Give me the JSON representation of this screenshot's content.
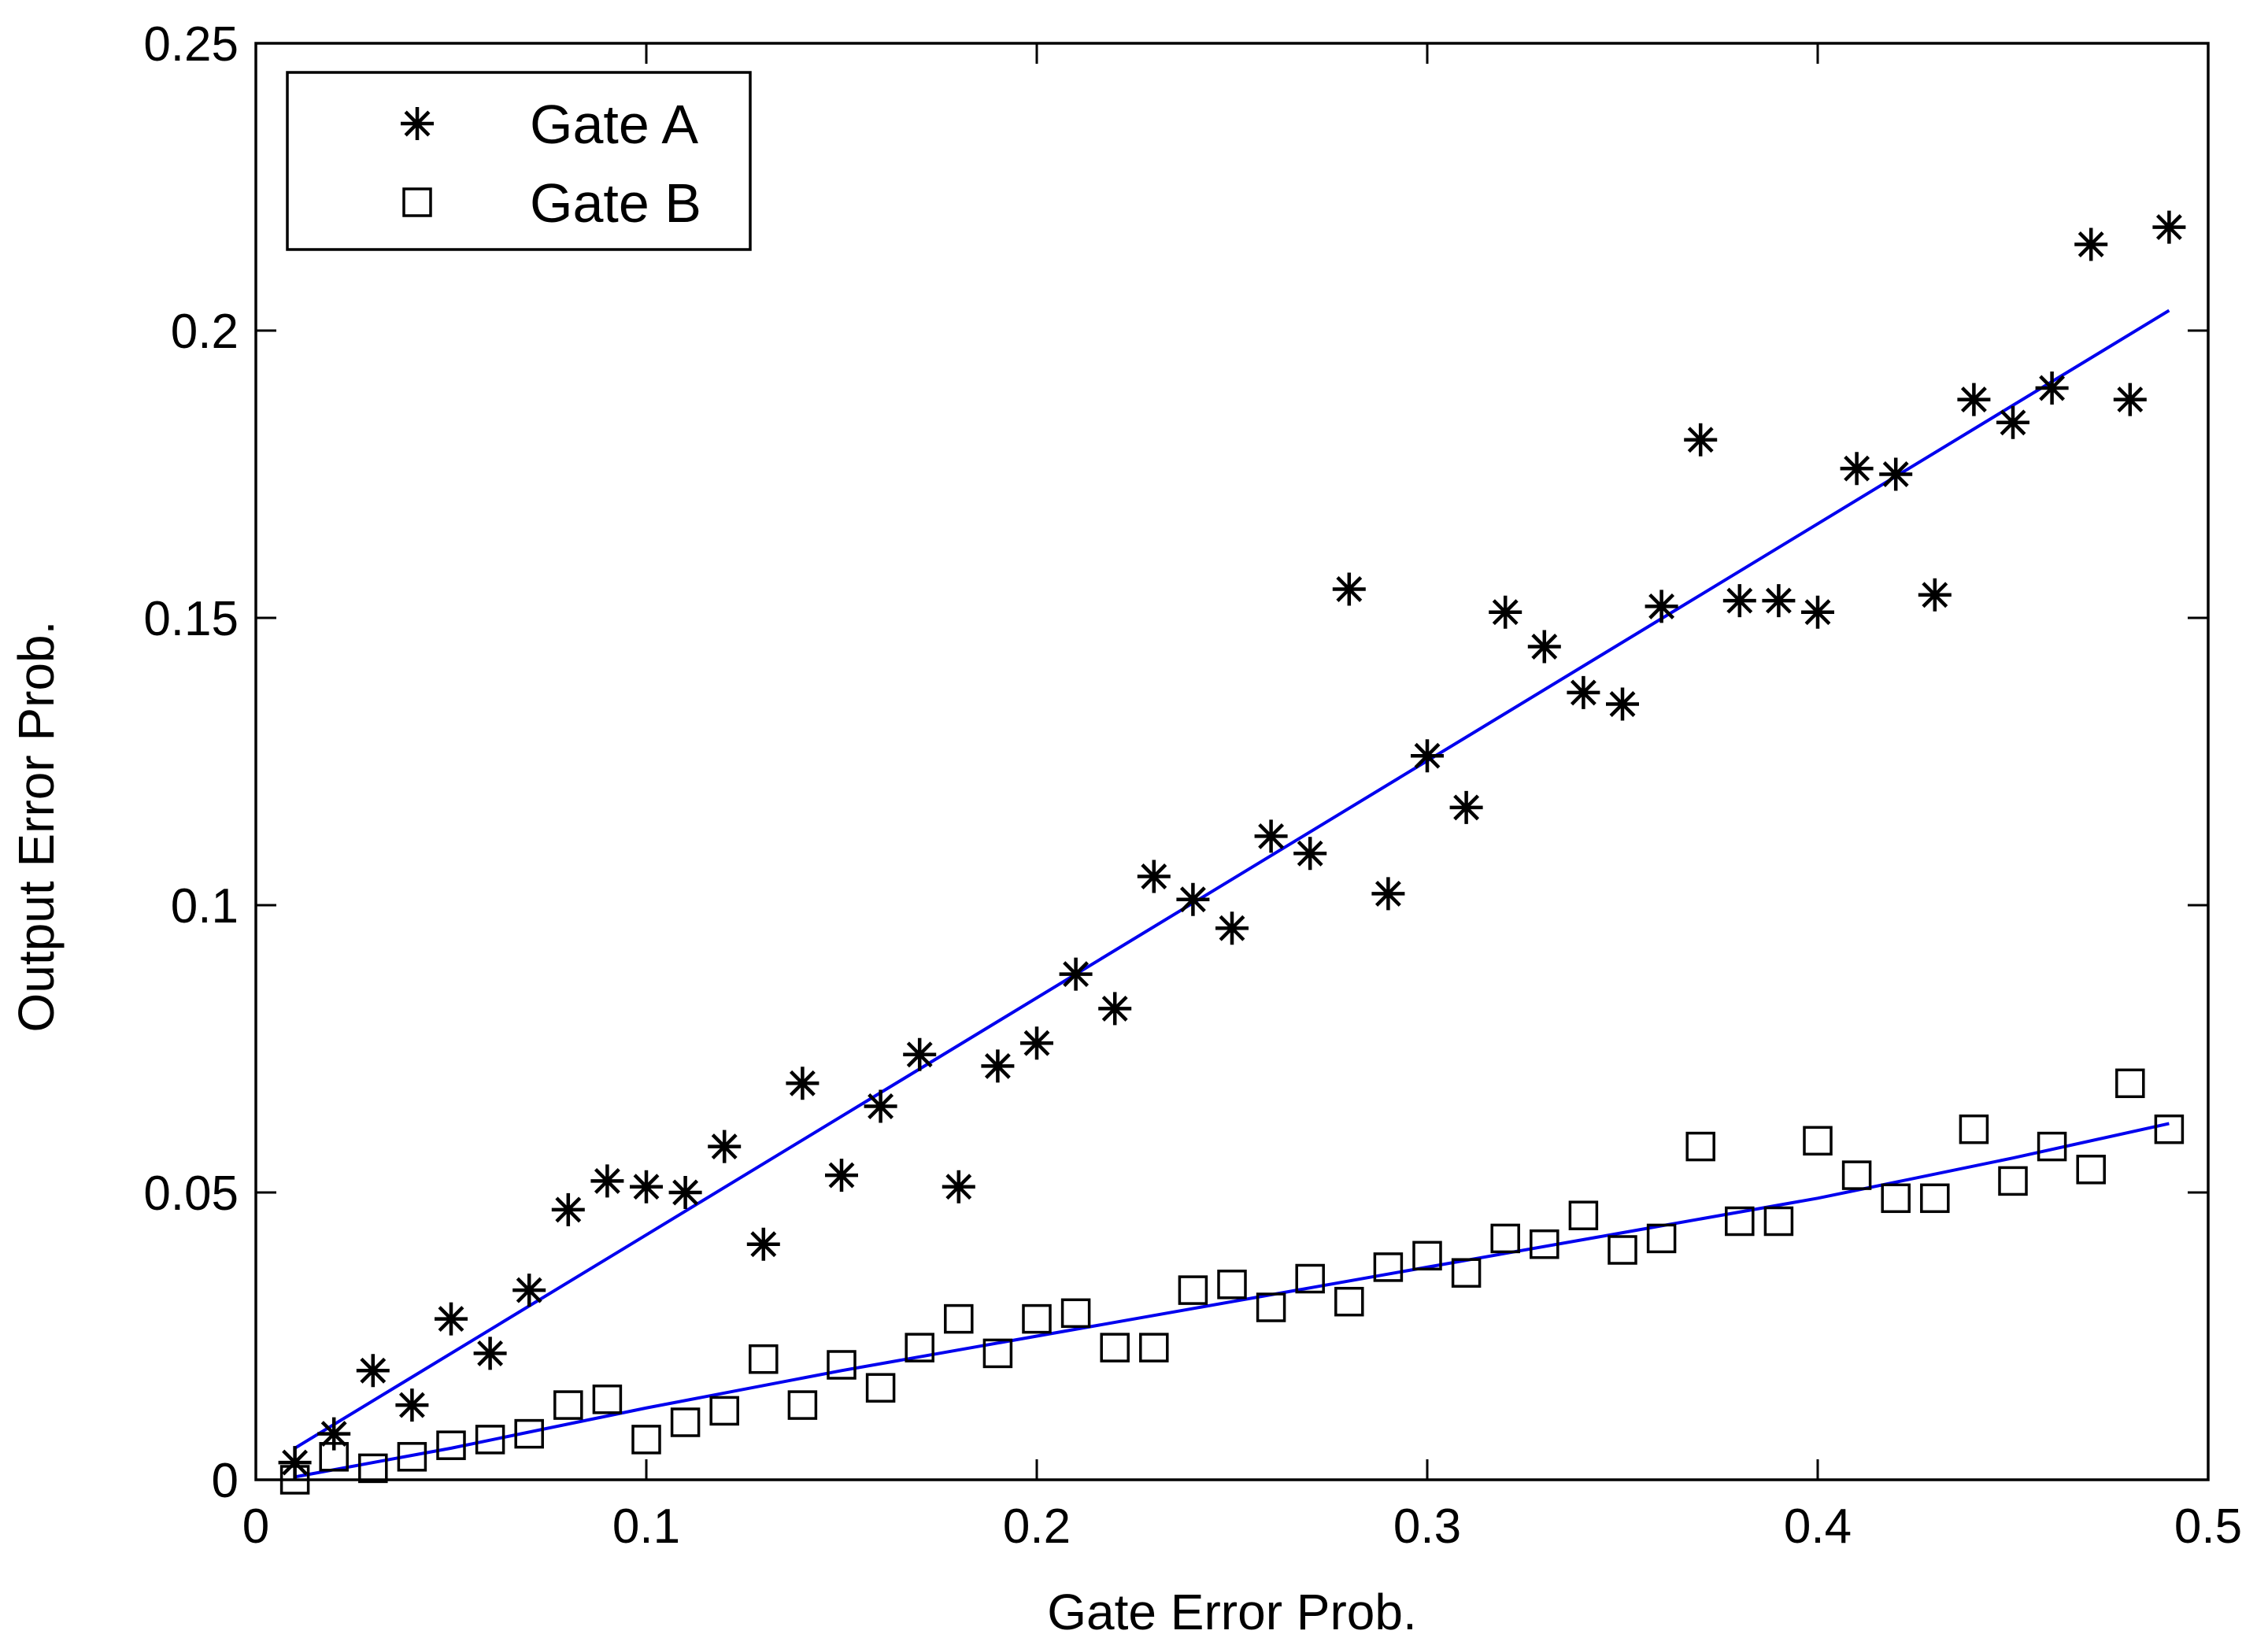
{
  "chart_data": {
    "type": "scatter",
    "title": "",
    "xlabel": "Gate Error Prob.",
    "ylabel": "Output Error Prob.",
    "xlim": [
      0,
      0.5
    ],
    "ylim": [
      0,
      0.25
    ],
    "grid": false,
    "legend_position": "top-left",
    "xticks": [
      0,
      0.1,
      0.2,
      0.3,
      0.4,
      0.5
    ],
    "xtick_labels": [
      "0",
      "0.1",
      "0.2",
      "0.3",
      "0.4",
      "0.5"
    ],
    "yticks": [
      0,
      0.05,
      0.1,
      0.15,
      0.2,
      0.25
    ],
    "ytick_labels": [
      "0",
      "0.05",
      "0.1",
      "0.15",
      "0.2",
      "0.25"
    ],
    "fit_color": "#0000ee",
    "series": [
      {
        "name": "Gate A",
        "marker": "asterisk",
        "x": [
          0.01,
          0.02,
          0.03,
          0.04,
          0.05,
          0.06,
          0.07,
          0.08,
          0.09,
          0.1,
          0.11,
          0.12,
          0.13,
          0.14,
          0.15,
          0.16,
          0.17,
          0.18,
          0.19,
          0.2,
          0.21,
          0.22,
          0.23,
          0.24,
          0.25,
          0.26,
          0.27,
          0.28,
          0.29,
          0.3,
          0.31,
          0.32,
          0.33,
          0.34,
          0.35,
          0.36,
          0.37,
          0.38,
          0.39,
          0.4,
          0.41,
          0.42,
          0.43,
          0.44,
          0.45,
          0.46,
          0.47,
          0.48,
          0.49
        ],
        "y": [
          0.003,
          0.008,
          0.019,
          0.013,
          0.028,
          0.022,
          0.033,
          0.047,
          0.052,
          0.051,
          0.05,
          0.058,
          0.041,
          0.069,
          0.053,
          0.065,
          0.074,
          0.051,
          0.072,
          0.076,
          0.088,
          0.082,
          0.105,
          0.101,
          0.096,
          0.112,
          0.109,
          0.155,
          0.102,
          0.126,
          0.117,
          0.151,
          0.145,
          0.137,
          0.135,
          0.152,
          0.181,
          0.153,
          0.153,
          0.151,
          0.176,
          0.175,
          0.154,
          0.188,
          0.184,
          0.19,
          0.215,
          0.188,
          0.218
        ],
        "fit": {
          "x": [
            0.01,
            0.49
          ],
          "y": [
            0.0055,
            0.2035
          ]
        }
      },
      {
        "name": "Gate B",
        "marker": "square",
        "x": [
          0.01,
          0.02,
          0.03,
          0.04,
          0.05,
          0.06,
          0.07,
          0.08,
          0.09,
          0.1,
          0.11,
          0.12,
          0.13,
          0.14,
          0.15,
          0.16,
          0.17,
          0.18,
          0.19,
          0.2,
          0.21,
          0.22,
          0.23,
          0.24,
          0.25,
          0.26,
          0.27,
          0.28,
          0.29,
          0.3,
          0.31,
          0.32,
          0.33,
          0.34,
          0.35,
          0.36,
          0.37,
          0.38,
          0.39,
          0.4,
          0.41,
          0.42,
          0.43,
          0.44,
          0.45,
          0.46,
          0.47,
          0.48,
          0.49
        ],
        "y": [
          0.0,
          0.004,
          0.002,
          0.004,
          0.006,
          0.007,
          0.008,
          0.013,
          0.014,
          0.007,
          0.01,
          0.012,
          0.021,
          0.013,
          0.02,
          0.016,
          0.023,
          0.028,
          0.022,
          0.028,
          0.029,
          0.023,
          0.023,
          0.033,
          0.034,
          0.03,
          0.035,
          0.031,
          0.037,
          0.039,
          0.036,
          0.042,
          0.041,
          0.046,
          0.04,
          0.042,
          0.058,
          0.045,
          0.045,
          0.059,
          0.053,
          0.049,
          0.049,
          0.061,
          0.052,
          0.058,
          0.054,
          0.069,
          0.061
        ],
        "fit": {
          "x": [
            0.01,
            0.05,
            0.1,
            0.15,
            0.2,
            0.25,
            0.3,
            0.35,
            0.4,
            0.45,
            0.49
          ],
          "y": [
            0.0005,
            0.0055,
            0.0125,
            0.019,
            0.025,
            0.031,
            0.037,
            0.043,
            0.049,
            0.056,
            0.062
          ]
        }
      }
    ]
  }
}
